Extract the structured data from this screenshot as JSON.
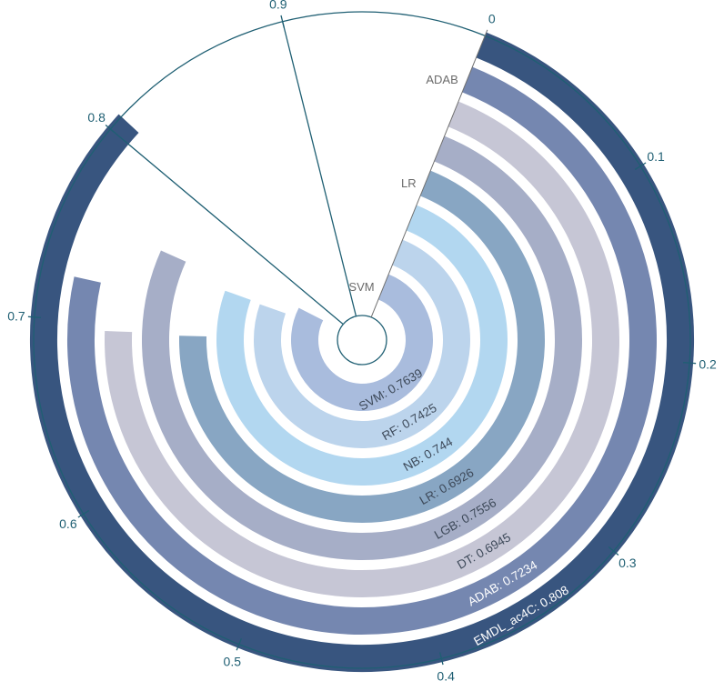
{
  "chart_data": {
    "type": "radial-bar",
    "axis": {
      "min": 0,
      "max": 1,
      "ticks": [
        "0",
        "0.1",
        "0.2",
        "0.3",
        "0.4",
        "0.5",
        "0.6",
        "0.7",
        "0.8",
        "0.9"
      ]
    },
    "categories": [
      "SVM",
      "RF",
      "NB",
      "LR",
      "LGB",
      "DT",
      "ADAB",
      "EMDL_ac4C"
    ],
    "values": [
      0.7639,
      0.7425,
      0.744,
      0.6926,
      0.7556,
      0.6945,
      0.7234,
      0.808
    ],
    "bar_labels": [
      "SVM: 0.7639",
      "RF: 0.7425",
      "NB: 0.744",
      "LR: 0.6926",
      "LGB: 0.7556",
      "DT: 0.6945",
      "ADAB: 0.7234",
      "EMDL_ac4C: 0.808"
    ],
    "category_axis_labels": [
      "SVM",
      "LR",
      "ADAB"
    ],
    "colors": [
      "#a9bcdd",
      "#bcd4ec",
      "#b2d7f0",
      "#88a6c3",
      "#a6aec7",
      "#c6c6d5",
      "#7587b0",
      "#38557f"
    ]
  }
}
